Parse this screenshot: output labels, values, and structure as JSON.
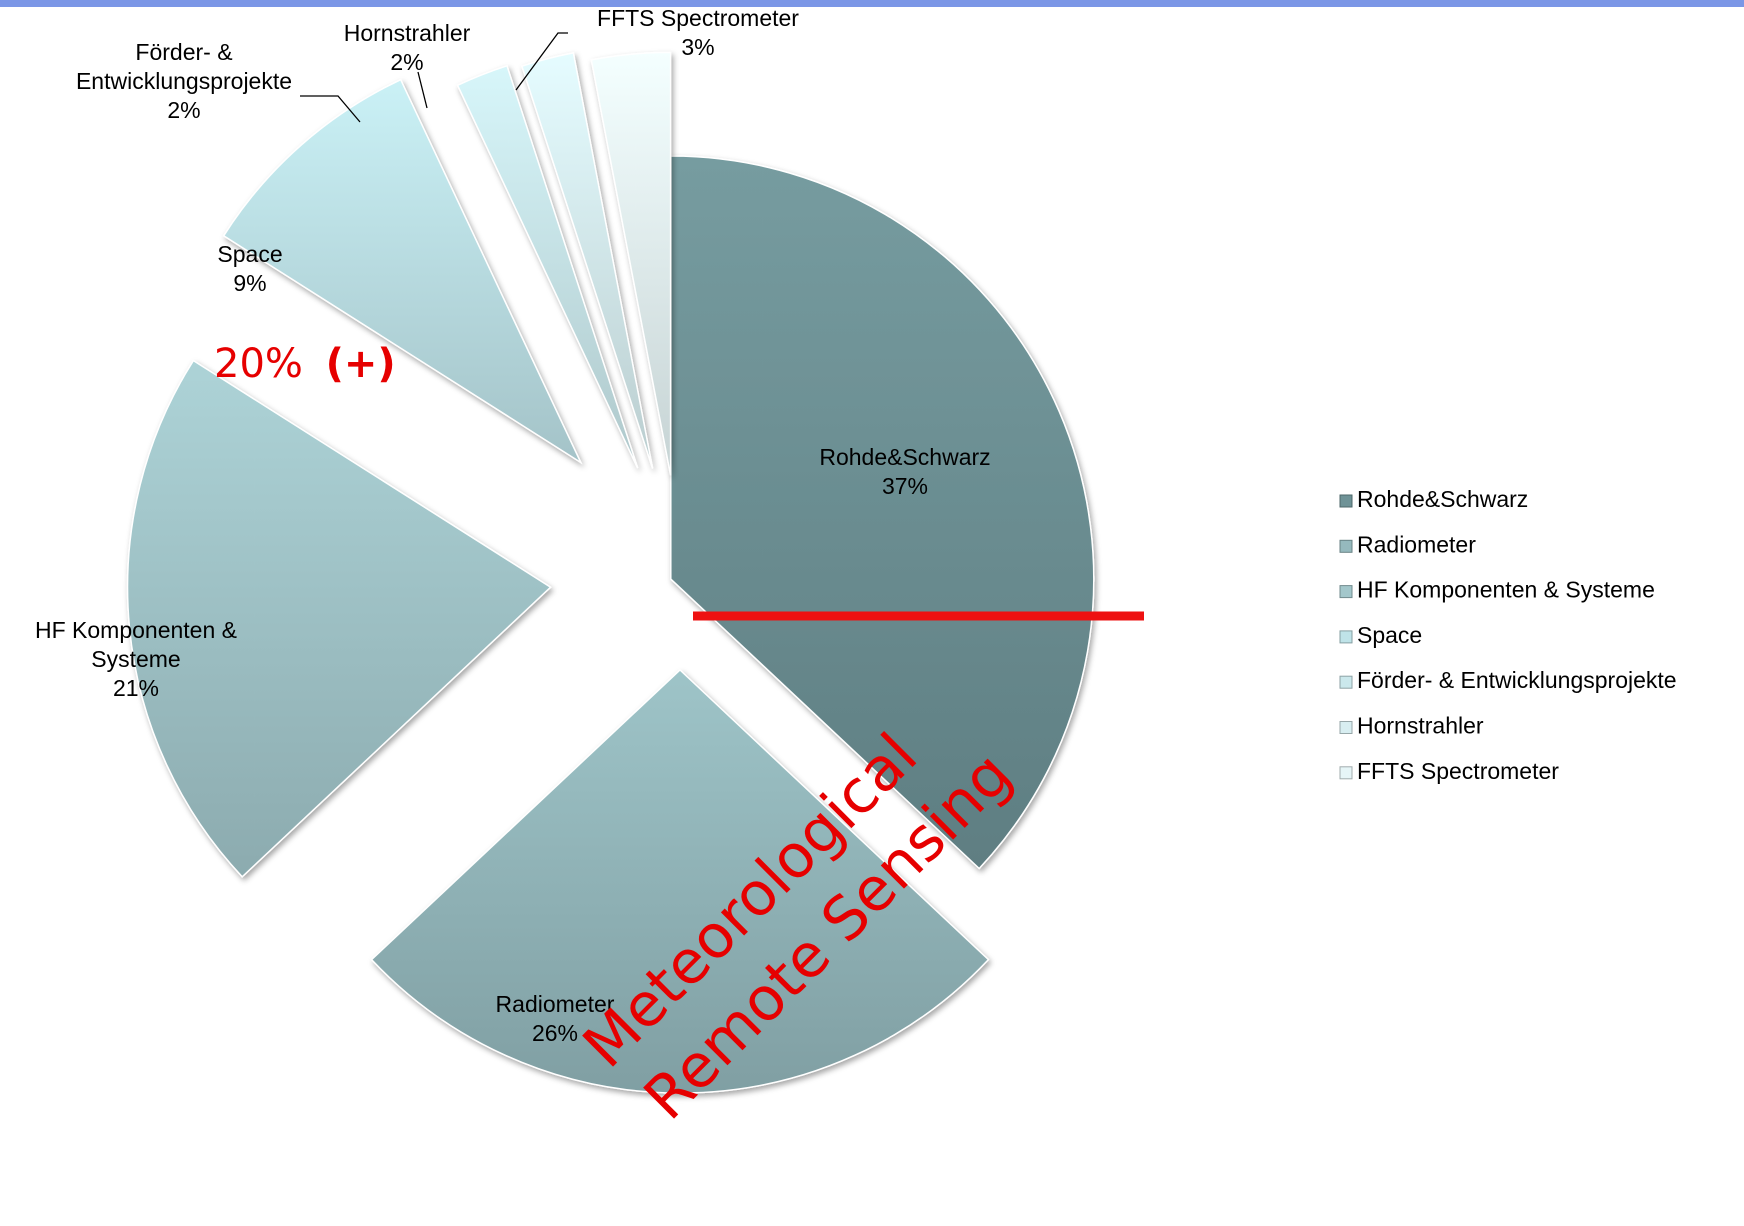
{
  "chart_data": {
    "type": "pie",
    "exploded": true,
    "categories": [
      "Rohde&Schwarz",
      "Radiometer",
      "HF Komponenten & Systeme",
      "Space",
      "Förder- & Entwicklungsprojekte",
      "Hornstrahler",
      "FFTS Spectrometer"
    ],
    "values": [
      37,
      26,
      21,
      9,
      2,
      2,
      3
    ],
    "slice_labels": [
      {
        "lines": [
          "Rohde&Schwarz",
          "37%"
        ]
      },
      {
        "lines": [
          "Radiometer",
          "26%"
        ]
      },
      {
        "lines": [
          "HF Komponenten &",
          "Systeme",
          "21%"
        ]
      },
      {
        "lines": [
          "Space",
          "9%"
        ]
      },
      {
        "lines": [
          "Förder- &",
          "Entwicklungsprojekte",
          "2%"
        ]
      },
      {
        "lines": [
          "Hornstrahler",
          "2%"
        ]
      },
      {
        "lines": [
          "FFTS Spectrometer",
          "3%"
        ]
      }
    ],
    "colors": [
      "#6f9397",
      "#95b9bd",
      "#a3c7cb",
      "#bfe3e8",
      "#cbe8ec",
      "#d8eef1",
      "#e6f5f7"
    ],
    "legend": {
      "position": "right",
      "entries": [
        "Rohde&Schwarz",
        "Radiometer",
        "HF Komponenten & Systeme",
        "Space",
        "Förder- & Entwicklungsprojekte",
        "Hornstrahler",
        "FFTS Spectrometer"
      ]
    },
    "annotations": {
      "space_growth_pct": "20%",
      "space_growth_sign": "(+)",
      "overlay_line1": "Meteorological",
      "overlay_line2": "Remote Sensing",
      "divider_color": "#ee1111",
      "annotation_color": "#e60000"
    }
  }
}
